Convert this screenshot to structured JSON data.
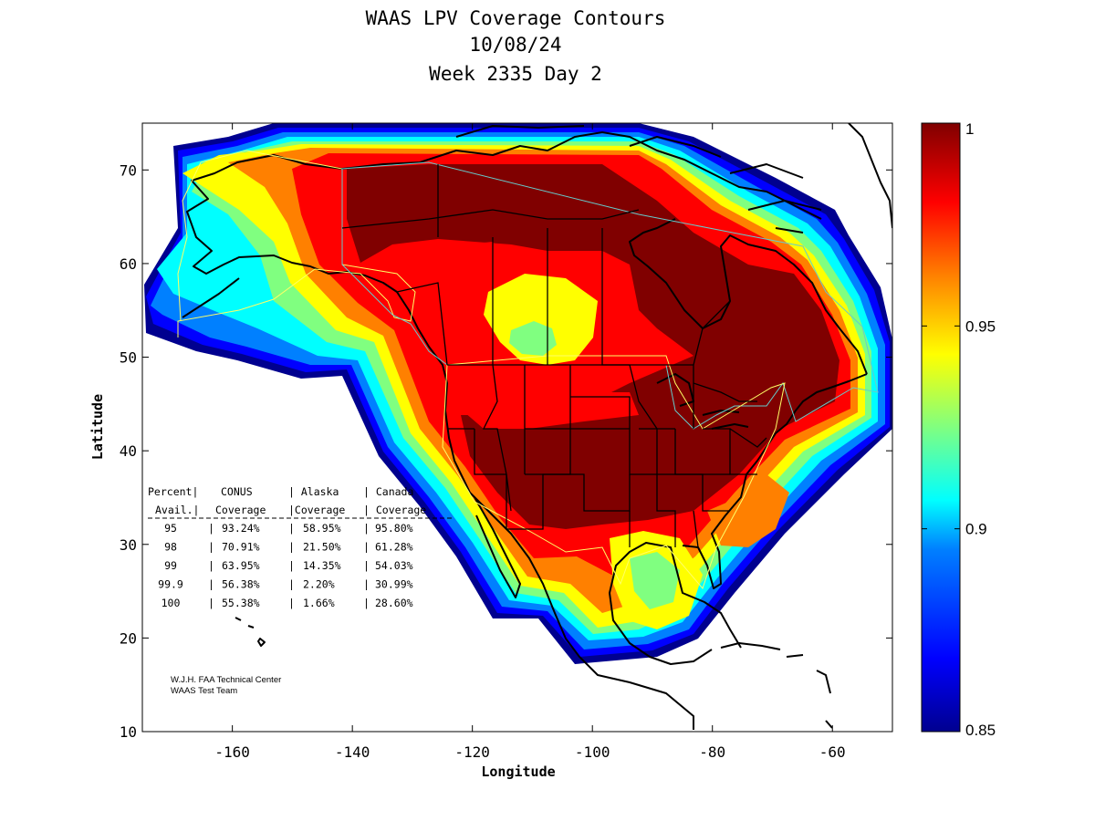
{
  "title_lines": [
    "WAAS LPV Coverage Contours",
    "10/08/24",
    "Week 2335 Day 2"
  ],
  "map": {
    "xlabel": "Longitude",
    "ylabel": "Latitude",
    "xlim": [
      -175,
      -50
    ],
    "ylim": [
      10,
      75
    ],
    "x_ticks": [
      -160,
      -140,
      -120,
      -100,
      -80,
      -60
    ],
    "y_ticks": [
      10,
      20,
      30,
      40,
      50,
      60,
      70
    ]
  },
  "colorbar": {
    "range": [
      0.85,
      1
    ],
    "ticks": [
      "0.85",
      "0.9",
      "0.95",
      "1"
    ],
    "colors": [
      "#00008f",
      "#0000ff",
      "#0080ff",
      "#00ffff",
      "#80ff80",
      "#ffff00",
      "#ff8000",
      "#ff0000",
      "#800000"
    ]
  },
  "coverage_table": {
    "header_row1": [
      "Percent|",
      "CONUS",
      "| Alaska",
      "| Canada"
    ],
    "header_row2": [
      "Avail.|",
      "Coverage",
      "|Coverage",
      "| Coverage"
    ],
    "rows": [
      {
        "percent": "95",
        "conus": "93.24%",
        "alaska": "58.95%",
        "canada": "95.80%"
      },
      {
        "percent": "98",
        "conus": "70.91%",
        "alaska": "21.50%",
        "canada": "61.28%"
      },
      {
        "percent": "99",
        "conus": "63.95%",
        "alaska": "14.35%",
        "canada": "54.03%"
      },
      {
        "percent": "99.9",
        "conus": "56.38%",
        "alaska": "2.20%",
        "canada": "30.99%"
      },
      {
        "percent": "100",
        "conus": "55.38%",
        "alaska": "1.66%",
        "canada": "28.60%"
      }
    ]
  },
  "credit": [
    "W.J.H. FAA Technical Center",
    "WAAS Test Team"
  ]
}
